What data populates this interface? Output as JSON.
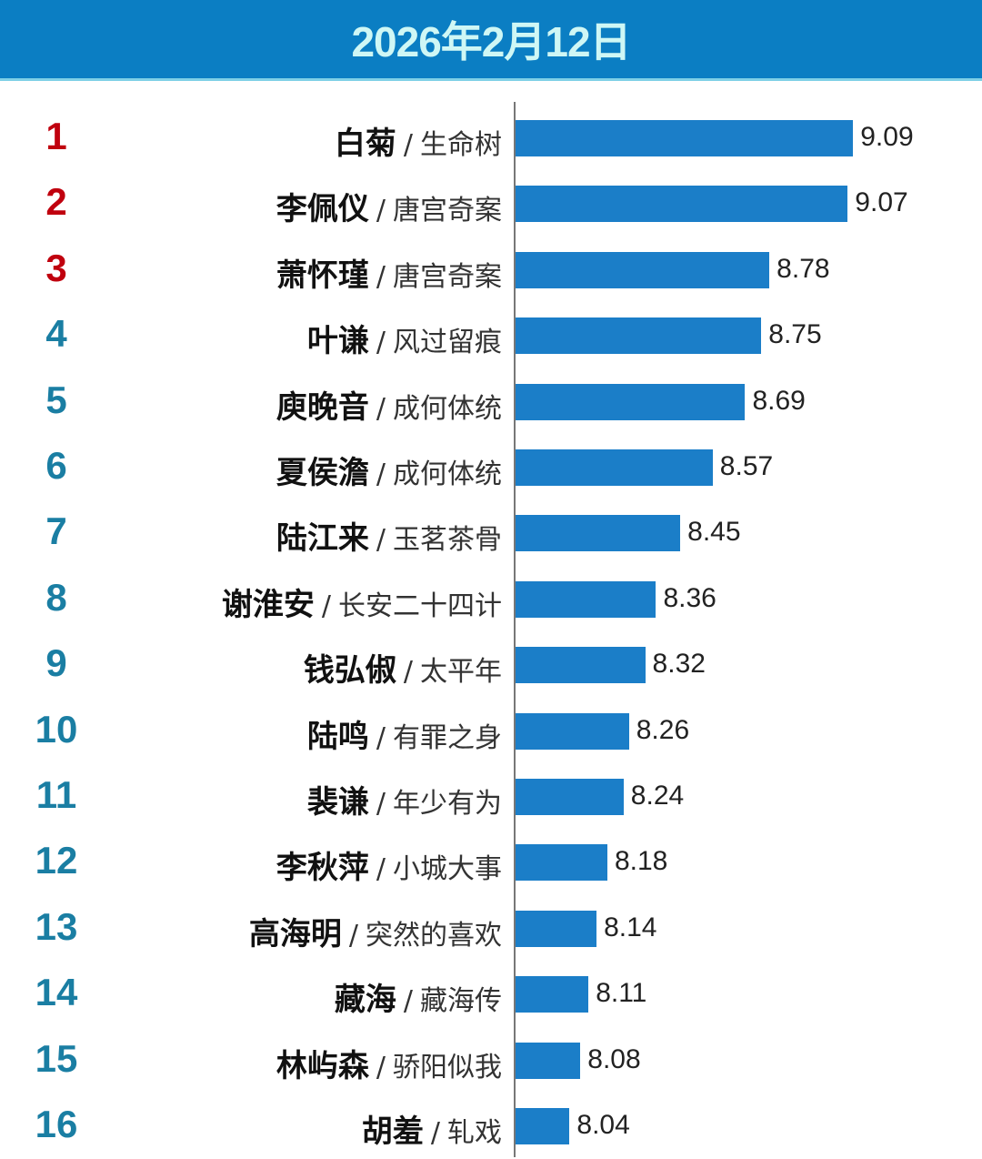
{
  "chart_data": {
    "type": "bar",
    "orientation": "horizontal",
    "title": "2026年2月12日",
    "xlim": [
      7.84,
      9.57
    ],
    "grid": false,
    "colors": {
      "header": "#0b7ec3",
      "bar": "#1b7ec8",
      "rank_top3": "#c0000e",
      "rank_other": "#1a7ea3"
    },
    "rows": [
      {
        "rank": "1",
        "name": "白菊",
        "work": "生命树",
        "value": 9.09,
        "label": "9.09"
      },
      {
        "rank": "2",
        "name": "李佩仪",
        "work": "唐宫奇案",
        "value": 9.07,
        "label": "9.07"
      },
      {
        "rank": "3",
        "name": "萧怀瑾",
        "work": "唐宫奇案",
        "value": 8.78,
        "label": "8.78"
      },
      {
        "rank": "4",
        "name": "叶谦",
        "work": "风过留痕",
        "value": 8.75,
        "label": "8.75"
      },
      {
        "rank": "5",
        "name": "庾晚音",
        "work": "成何体统",
        "value": 8.69,
        "label": "8.69"
      },
      {
        "rank": "6",
        "name": "夏侯澹",
        "work": "成何体统",
        "value": 8.57,
        "label": "8.57"
      },
      {
        "rank": "7",
        "name": "陆江来",
        "work": "玉茗茶骨",
        "value": 8.45,
        "label": "8.45"
      },
      {
        "rank": "8",
        "name": "谢淮安",
        "work": "长安二十四计",
        "value": 8.36,
        "label": "8.36"
      },
      {
        "rank": "9",
        "name": "钱弘俶",
        "work": "太平年",
        "value": 8.32,
        "label": "8.32"
      },
      {
        "rank": "10",
        "name": "陆鸣",
        "work": "有罪之身",
        "value": 8.26,
        "label": "8.26"
      },
      {
        "rank": "11",
        "name": "裴谦",
        "work": "年少有为",
        "value": 8.24,
        "label": "8.24"
      },
      {
        "rank": "12",
        "name": "李秋萍",
        "work": "小城大事",
        "value": 8.18,
        "label": "8.18"
      },
      {
        "rank": "13",
        "name": "高海明",
        "work": "突然的喜欢",
        "value": 8.14,
        "label": "8.14"
      },
      {
        "rank": "14",
        "name": "藏海",
        "work": "藏海传",
        "value": 8.11,
        "label": "8.11"
      },
      {
        "rank": "15",
        "name": "林屿森",
        "work": "骄阳似我",
        "value": 8.08,
        "label": "8.08"
      },
      {
        "rank": "16",
        "name": "胡羞",
        "work": "轧戏",
        "value": 8.04,
        "label": "8.04"
      }
    ],
    "separator": "/"
  }
}
